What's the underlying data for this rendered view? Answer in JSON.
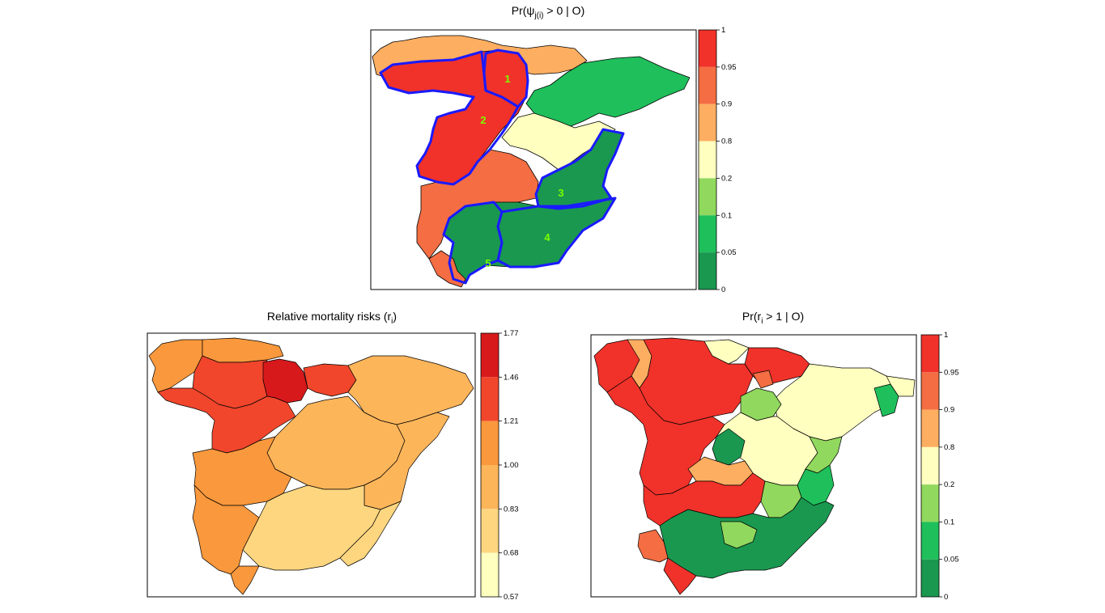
{
  "figure": {
    "top": {
      "title_prefix": "Pr(ψ",
      "title_sub": "j(i)",
      "title_suffix": " > 0 | O)",
      "legend_ticks": [
        "1",
        "0.95",
        "0.9",
        "0.8",
        "0.2",
        "0.1",
        "0.05",
        "0"
      ],
      "legend_colors": [
        "#f0322a",
        "#f46d43",
        "#fdae61",
        "#ffffbf",
        "#91d85e",
        "#1fbf5b",
        "#1a9850"
      ],
      "cluster_outline_color": "#1a1aff",
      "cluster_labels": [
        "1",
        "2",
        "3",
        "4",
        "5"
      ]
    },
    "bottom_left": {
      "title_prefix": "Relative mortality risks (r",
      "title_sub": "i",
      "title_suffix": ")",
      "legend_ticks": [
        "1.77",
        "1.46",
        "1.21",
        "1.00",
        "0.83",
        "0.68",
        "0.57"
      ],
      "legend_colors": [
        "#d7191c",
        "#f1462c",
        "#f9983c",
        "#fdb55a",
        "#fed680",
        "#ffffbf"
      ]
    },
    "bottom_right": {
      "title_prefix": "Pr(r",
      "title_sub": "i",
      "title_suffix": " > 1 | O)",
      "legend_ticks": [
        "1",
        "0.95",
        "0.9",
        "0.8",
        "0.2",
        "0.1",
        "0.05",
        "0"
      ],
      "legend_colors": [
        "#f0322a",
        "#f46d43",
        "#fdae61",
        "#ffffbf",
        "#91d85e",
        "#1fbf5b",
        "#1a9850"
      ]
    }
  }
}
